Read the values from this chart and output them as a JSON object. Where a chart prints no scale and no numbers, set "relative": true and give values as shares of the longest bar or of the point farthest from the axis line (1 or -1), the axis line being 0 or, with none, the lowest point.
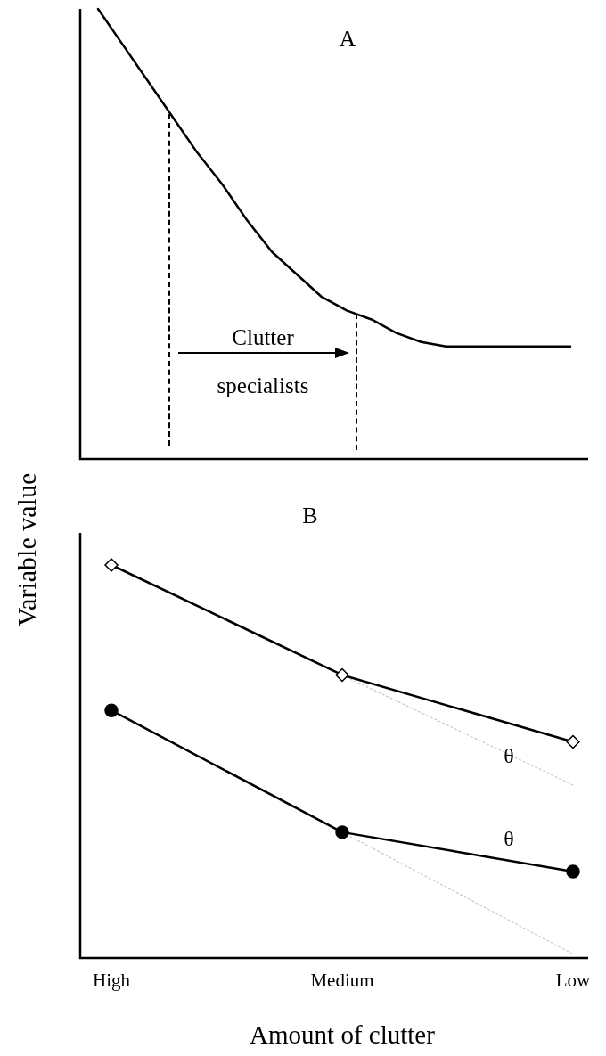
{
  "chart_data": [
    {
      "type": "line",
      "title": "A",
      "ylabel": "Variable value",
      "relative": true,
      "tick_labels": false,
      "marker": "none",
      "categories": [
        null,
        null,
        null,
        null,
        null,
        null,
        null,
        null,
        null,
        null,
        null,
        null,
        null,
        null,
        null,
        null,
        null,
        null,
        null,
        null
      ],
      "series": [
        {
          "color": "#000000",
          "values": [
            1,
            0.92,
            0.84,
            0.76,
            0.68,
            0.61,
            0.53,
            0.46,
            0.41,
            0.36,
            0.33,
            0.31,
            0.28,
            0.26,
            0.25,
            0.25,
            0.25,
            0.25,
            0.25,
            0.25
          ]
        }
      ],
      "annotations": [
        "Clutter specialists"
      ]
    },
    {
      "type": "line",
      "title": "B",
      "xlabel": "Amount of clutter",
      "relative": true,
      "tick_labels": "x",
      "categories": [
        "High",
        "Medium",
        "Low"
      ],
      "series": [
        {
          "color": "#000000",
          "marker": "diamond",
          "values": [
            1,
            0.72,
            0.55
          ]
        },
        {
          "color": "#000000",
          "marker": "circle",
          "values": [
            0.63,
            0.32,
            0.22
          ]
        },
        {
          "color": "#c8c8c8",
          "marker": "none",
          "line_style": "dotted",
          "values": [
            null,
            0.72,
            0.44
          ]
        },
        {
          "color": "#c8c8c8",
          "marker": "none",
          "line_style": "dotted",
          "values": [
            null,
            0.32,
            0.01
          ]
        }
      ],
      "annotations": [
        "θ",
        "θ"
      ]
    }
  ]
}
